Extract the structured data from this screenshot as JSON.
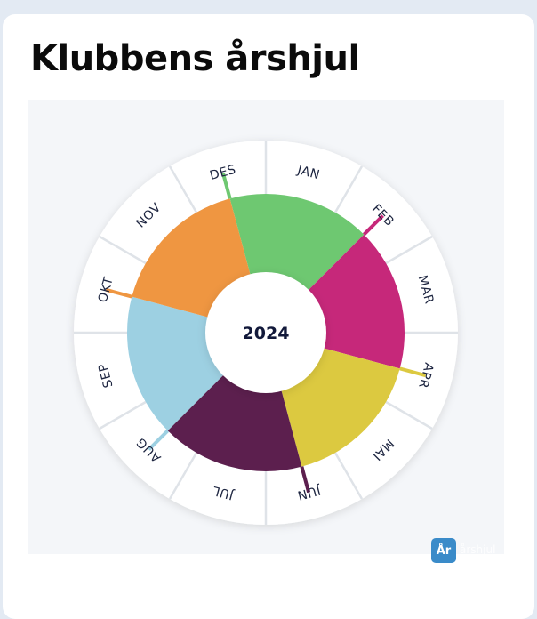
{
  "page": {
    "title": "Klubbens årshjul"
  },
  "wheel": {
    "year": "2024",
    "months": [
      "JAN",
      "FEB",
      "MAR",
      "APR",
      "MAI",
      "JUN",
      "JUL",
      "AUG",
      "SEP",
      "OKT",
      "NOV",
      "DES"
    ],
    "quarters": [
      {
        "color": "#6ec871"
      },
      {
        "color": "#c6287a"
      },
      {
        "color": "#dcc940"
      },
      {
        "color": "#5c1f4e"
      },
      {
        "color": "#9dd0e2"
      },
      {
        "color": "#ef9641"
      }
    ],
    "colors": {
      "ring": "#ffffff",
      "center": "#ffffff",
      "divider": "#dfe3e8"
    }
  },
  "logo": {
    "text": "År",
    "label": "årshjul"
  }
}
